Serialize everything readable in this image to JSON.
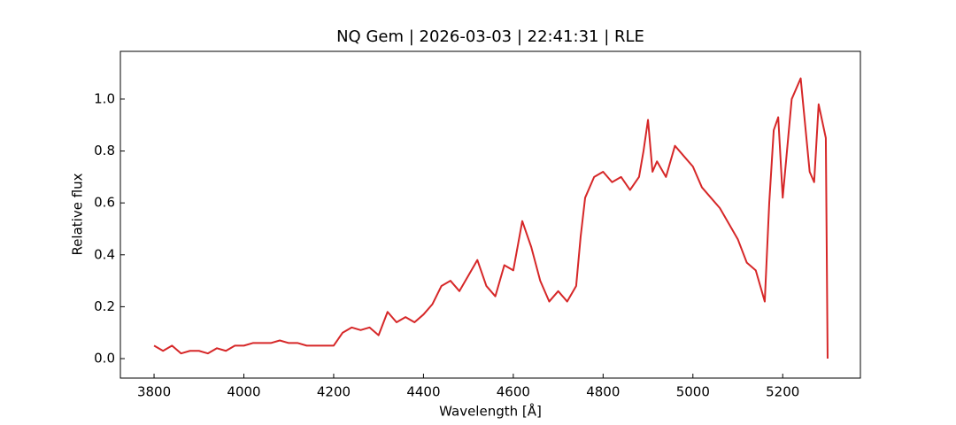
{
  "chart_data": {
    "type": "line",
    "title": "NQ Gem | 2026-03-03 | 22:41:31 | RLE",
    "xlabel": "Wavelength [Å]",
    "ylabel": "Relative flux",
    "x": [
      3800,
      3820,
      3840,
      3860,
      3880,
      3900,
      3920,
      3940,
      3960,
      3980,
      4000,
      4020,
      4040,
      4060,
      4080,
      4100,
      4120,
      4140,
      4160,
      4180,
      4200,
      4220,
      4240,
      4260,
      4280,
      4300,
      4320,
      4340,
      4360,
      4380,
      4400,
      4420,
      4440,
      4460,
      4480,
      4500,
      4520,
      4540,
      4560,
      4580,
      4600,
      4620,
      4640,
      4660,
      4680,
      4700,
      4720,
      4740,
      4750,
      4760,
      4780,
      4800,
      4820,
      4840,
      4860,
      4880,
      4890,
      4900,
      4910,
      4920,
      4940,
      4960,
      4980,
      5000,
      5020,
      5040,
      5060,
      5080,
      5100,
      5120,
      5140,
      5160,
      5170,
      5180,
      5190,
      5200,
      5220,
      5240,
      5260,
      5270,
      5280,
      5296,
      5300
    ],
    "series": [
      {
        "name": "NQ Gem",
        "color": "#d62728",
        "values": [
          0.05,
          0.03,
          0.05,
          0.02,
          0.03,
          0.03,
          0.02,
          0.04,
          0.03,
          0.05,
          0.05,
          0.06,
          0.06,
          0.06,
          0.07,
          0.06,
          0.06,
          0.05,
          0.05,
          0.05,
          0.05,
          0.1,
          0.12,
          0.11,
          0.12,
          0.09,
          0.18,
          0.14,
          0.16,
          0.14,
          0.17,
          0.21,
          0.28,
          0.3,
          0.26,
          0.32,
          0.38,
          0.28,
          0.24,
          0.36,
          0.34,
          0.53,
          0.43,
          0.3,
          0.22,
          0.26,
          0.22,
          0.28,
          0.47,
          0.62,
          0.7,
          0.72,
          0.68,
          0.7,
          0.65,
          0.7,
          0.8,
          0.92,
          0.72,
          0.76,
          0.7,
          0.82,
          0.78,
          0.74,
          0.66,
          0.62,
          0.58,
          0.52,
          0.46,
          0.37,
          0.34,
          0.22,
          0.6,
          0.88,
          0.93,
          0.62,
          1.0,
          1.08,
          0.72,
          0.68,
          0.98,
          0.85,
          0.0
        ]
      }
    ],
    "xlim": [
      3725,
      5373
    ],
    "ylim": [
      -0.075,
      1.184
    ],
    "xticks": [
      3800,
      4000,
      4200,
      4400,
      4600,
      4800,
      5000,
      5200
    ],
    "yticks": [
      {
        "value": 0,
        "label": "0.0"
      },
      0.2,
      0.4,
      0.6,
      0.8,
      {
        "value": 1,
        "label": "1.0"
      }
    ]
  }
}
